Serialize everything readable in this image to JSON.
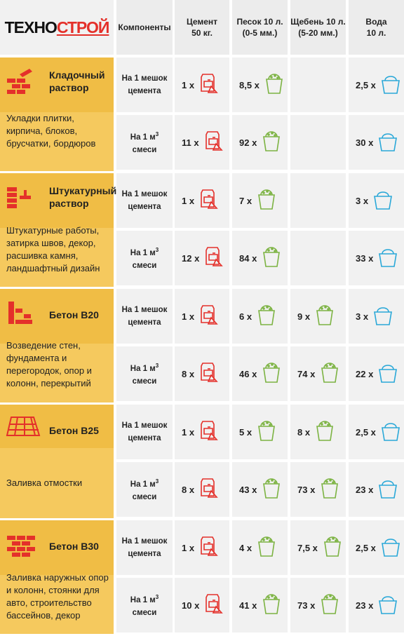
{
  "brand": {
    "part1": "ТЕХНО",
    "part2": "СТРОЙ"
  },
  "headers": [
    {
      "line1": "Компоненты",
      "line2": ""
    },
    {
      "line1": "Цемент",
      "line2": "50 кг."
    },
    {
      "line1": "Песок 10 л.",
      "line2": "(0-5 мм.)"
    },
    {
      "line1": "Щебень 10 л.",
      "line2": "(5-20 мм.)"
    },
    {
      "line1": "Вода",
      "line2": "10 л."
    }
  ],
  "per_bag": {
    "line1": "На 1 мешок",
    "line2": "цемента"
  },
  "per_m3": {
    "line1": "На 1 м",
    "sup": "3",
    "line2": "смеси"
  },
  "mult": "x",
  "colors": {
    "accent": "#e4302a",
    "sand": "#7cb342",
    "water": "#2aa8d8",
    "category": "#f5c95e"
  },
  "categories": [
    {
      "icon": "bricks-trowel-icon",
      "name": "Кладочный раствор",
      "description": "Укладки плитки, кирпича, блоков, брусчатки, бордюров",
      "rows": [
        {
          "cement": "1 x",
          "sand": "8,5 x",
          "gravel": "",
          "water": "2,5 x"
        },
        {
          "cement": "11 x",
          "sand": "92 x",
          "gravel": "",
          "water": "30 x"
        }
      ]
    },
    {
      "icon": "plaster-wall-icon",
      "name": "Штукатурный раствор",
      "description": "Штукатурные работы, затирка швов, декор, расшивка камня, ландшафтный дизайн",
      "rows": [
        {
          "cement": "1 x",
          "sand": "7 x",
          "gravel": "",
          "water": "3 x"
        },
        {
          "cement": "12 x",
          "sand": "84 x",
          "gravel": "",
          "water": "33 x"
        }
      ]
    },
    {
      "icon": "wall-corner-icon",
      "name": "Бетон В20",
      "description": "Возведение стен, фундамента и перегородок, опор и колонн, перекрытий",
      "rows": [
        {
          "cement": "1 x",
          "sand": "6 x",
          "gravel": "9 x",
          "water": "3 x"
        },
        {
          "cement": "8 x",
          "sand": "46 x",
          "gravel": "74 x",
          "water": "22 x"
        }
      ]
    },
    {
      "icon": "paving-icon",
      "name": "Бетон В25",
      "description": "Заливка отмостки",
      "rows": [
        {
          "cement": "1 x",
          "sand": "5 x",
          "gravel": "8 x",
          "water": "2,5 x"
        },
        {
          "cement": "8 x",
          "sand": "43 x",
          "gravel": "73 x",
          "water": "23 x"
        }
      ]
    },
    {
      "icon": "brick-wall-icon",
      "name": "Бетон В30",
      "description": "Заливка наружных опор и колонн, стоянки для авто, строительство бассейнов, декор",
      "rows": [
        {
          "cement": "1 x",
          "sand": "4 x",
          "gravel": "7,5 x",
          "water": "2,5 x"
        },
        {
          "cement": "10 x",
          "sand": "41 x",
          "gravel": "73 x",
          "water": "23 x"
        }
      ]
    }
  ]
}
